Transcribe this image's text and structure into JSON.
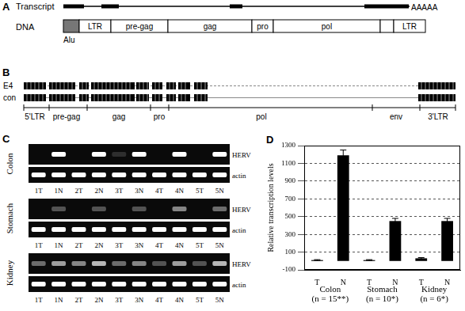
{
  "figure": {
    "A": {
      "label": "A",
      "transcript_label": "Transcript",
      "poly_a": "AAAAA",
      "dna_label": "DNA",
      "alu_label": "Alu",
      "dna_regions": [
        "LTR",
        "pre-gag",
        "gag",
        "pro",
        "pol",
        "LTR"
      ]
    },
    "B": {
      "label": "B",
      "rows": [
        "E4",
        "con"
      ],
      "map_labels": [
        "5'LTR",
        "pre-gag",
        "gag",
        "pro",
        "pol",
        "env",
        "3'LTR"
      ]
    },
    "C": {
      "label": "C",
      "lanes": [
        "1T",
        "1N",
        "2T",
        "2N",
        "3T",
        "3N",
        "4T",
        "4N",
        "5T",
        "5N"
      ],
      "gels": [
        {
          "tissue": "Colon",
          "rows": [
            {
              "name": "HERV",
              "bands": [
                0,
                1,
                0,
                1,
                0.15,
                1,
                0,
                1,
                0,
                1
              ]
            },
            {
              "name": "actin",
              "bands": [
                1,
                1,
                1,
                1,
                1,
                1,
                1,
                1,
                1,
                1
              ]
            }
          ]
        },
        {
          "tissue": "Stomach",
          "rows": [
            {
              "name": "HERV",
              "bands": [
                0,
                0.3,
                0,
                0.3,
                0,
                0.3,
                0,
                0.5,
                0,
                0.4
              ]
            },
            {
              "name": "actin",
              "bands": [
                1,
                1,
                1,
                1,
                1,
                1,
                1,
                1,
                1,
                1
              ]
            }
          ]
        },
        {
          "tissue": "Kidney",
          "rows": [
            {
              "name": "HERV",
              "bands": [
                0.4,
                0.6,
                0.5,
                0.7,
                0.4,
                0.5,
                0.3,
                0.6,
                0.3,
                0.7
              ]
            },
            {
              "name": "actin",
              "bands": [
                1,
                1,
                1,
                1,
                1,
                1,
                1,
                1,
                1,
                1
              ]
            }
          ]
        }
      ]
    },
    "D": {
      "label": "D"
    }
  },
  "chart_data": {
    "type": "bar",
    "ylabel": "Relative transcription levels",
    "categories": [
      "T",
      "N",
      "T",
      "N",
      "T",
      "N"
    ],
    "groups": [
      [
        "Colon",
        "(n = 15**)"
      ],
      [
        "Stomach",
        "(n = 10*)"
      ],
      [
        "Kidney",
        "(n = 6*)"
      ]
    ],
    "values": [
      10,
      1190,
      10,
      450,
      30,
      450
    ],
    "errors": [
      5,
      60,
      5,
      30,
      8,
      30
    ],
    "color": "#000000",
    "ylim": [
      -100,
      1300
    ],
    "yticks": [
      -100,
      100,
      300,
      500,
      700,
      900,
      1100,
      1300
    ],
    "grid": true
  }
}
